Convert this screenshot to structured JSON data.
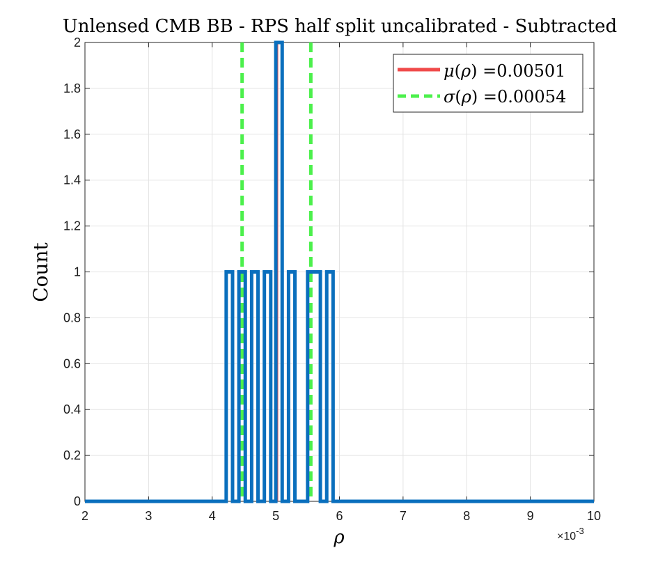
{
  "chart_data": {
    "type": "histogram",
    "title": "Unlensed CMB BB - RPS half split uncalibrated - Subtracted",
    "xlabel": "ρ",
    "ylabel": "Count",
    "x_exponent_label": "×10",
    "x_exponent_power": "-3",
    "xlim": [
      2,
      10
    ],
    "ylim": [
      0,
      2
    ],
    "xticks": [
      2,
      3,
      4,
      5,
      6,
      7,
      8,
      9,
      10
    ],
    "xtick_labels": [
      "2",
      "3",
      "4",
      "5",
      "6",
      "7",
      "8",
      "9",
      "10"
    ],
    "yticks": [
      0,
      0.2,
      0.4,
      0.6,
      0.8,
      1,
      1.2,
      1.4,
      1.6,
      1.8,
      2
    ],
    "ytick_labels": [
      "0",
      "0.2",
      "0.4",
      "0.6",
      "0.8",
      "1",
      "1.2",
      "1.4",
      "1.6",
      "1.8",
      "2"
    ],
    "grid": true,
    "bins": [
      {
        "x0": 4.22,
        "x1": 4.32,
        "count": 1
      },
      {
        "x0": 4.42,
        "x1": 4.52,
        "count": 1
      },
      {
        "x0": 4.62,
        "x1": 4.72,
        "count": 1
      },
      {
        "x0": 4.82,
        "x1": 4.92,
        "count": 1
      },
      {
        "x0": 5.0,
        "x1": 5.1,
        "count": 2
      },
      {
        "x0": 5.2,
        "x1": 5.3,
        "count": 1
      },
      {
        "x0": 5.5,
        "x1": 5.7,
        "count": 1
      },
      {
        "x0": 5.8,
        "x1": 5.9,
        "count": 1
      }
    ],
    "hist_color": "#0a6fbd",
    "mean": 5.01,
    "std": 0.54,
    "mean_color": "#f04a4a",
    "std_color": "#4cf04c",
    "legend_position": "top-right",
    "legend": [
      {
        "symbol": "μ",
        "arg": "ρ",
        "value": "0.00501",
        "style": "solid"
      },
      {
        "symbol": "σ",
        "arg": "ρ",
        "value": "0.00054",
        "style": "dashed"
      }
    ]
  }
}
